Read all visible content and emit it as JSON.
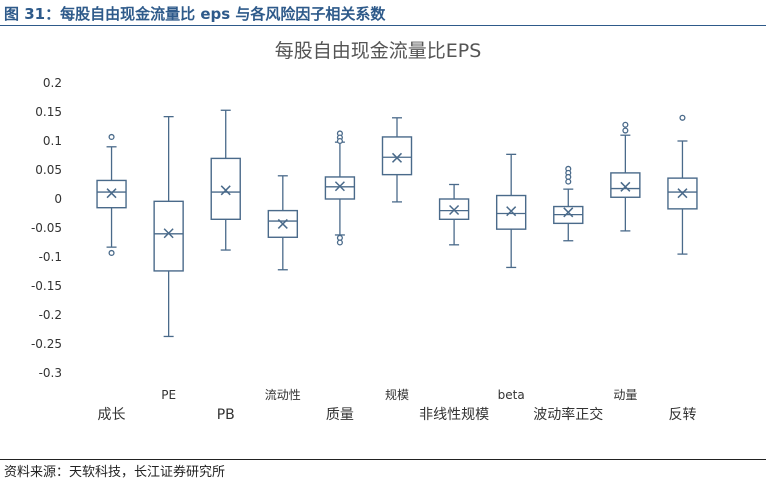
{
  "figure": {
    "title": "图 31：每股自由现金流量比 eps 与各风险因子相关系数",
    "source": "资料来源：天软科技，长江证券研究所"
  },
  "chart_data": {
    "type": "boxplot",
    "title": "每股自由现金流量比EPS",
    "xlabel": "",
    "ylabel": "",
    "ylim": [
      -0.3,
      0.2
    ],
    "ytick_step": 0.05,
    "yticks": [
      "0.2",
      "0.15",
      "0.1",
      "0.05",
      "0",
      "-0.05",
      "-0.1",
      "-0.15",
      "-0.2",
      "-0.25",
      "-0.3"
    ],
    "grid": false,
    "legend": "none",
    "colors": {
      "box": "#4a6a8a",
      "tick_text": "#333333",
      "title_text": "#555555"
    },
    "categories": [
      "成长",
      "PE",
      "PB",
      "流动性",
      "质量",
      "规模",
      "非线性规模",
      "beta",
      "波动率正交",
      "动量",
      "反转"
    ],
    "label_row": [
      "lower",
      "upper",
      "lower",
      "upper",
      "lower",
      "upper",
      "lower",
      "upper",
      "lower",
      "upper",
      "lower"
    ],
    "boxes": [
      {
        "category": "成长",
        "whisker_low": -0.083,
        "q1": -0.015,
        "median": 0.012,
        "q3": 0.032,
        "whisker_high": 0.09,
        "mean": 0.01,
        "outliers": [
          0.107,
          -0.093
        ]
      },
      {
        "category": "PE",
        "whisker_low": -0.237,
        "q1": -0.124,
        "median": -0.06,
        "q3": -0.004,
        "whisker_high": 0.142,
        "mean": -0.059,
        "outliers": []
      },
      {
        "category": "PB",
        "whisker_low": -0.088,
        "q1": -0.035,
        "median": 0.012,
        "q3": 0.07,
        "whisker_high": 0.153,
        "mean": 0.015,
        "outliers": []
      },
      {
        "category": "流动性",
        "whisker_low": -0.122,
        "q1": -0.066,
        "median": -0.038,
        "q3": -0.02,
        "whisker_high": 0.04,
        "mean": -0.043,
        "outliers": []
      },
      {
        "category": "质量",
        "whisker_low": -0.062,
        "q1": 0.0,
        "median": 0.021,
        "q3": 0.038,
        "whisker_high": 0.098,
        "mean": 0.022,
        "outliers": [
          0.113,
          0.106,
          0.1,
          -0.067,
          -0.075
        ]
      },
      {
        "category": "规模",
        "whisker_low": -0.005,
        "q1": 0.042,
        "median": 0.072,
        "q3": 0.107,
        "whisker_high": 0.14,
        "mean": 0.071,
        "outliers": []
      },
      {
        "category": "非线性规模",
        "whisker_low": -0.079,
        "q1": -0.035,
        "median": -0.02,
        "q3": 0.0,
        "whisker_high": 0.025,
        "mean": -0.019,
        "outliers": []
      },
      {
        "category": "beta",
        "whisker_low": -0.118,
        "q1": -0.052,
        "median": -0.025,
        "q3": 0.006,
        "whisker_high": 0.077,
        "mean": -0.021,
        "outliers": []
      },
      {
        "category": "波动率正交",
        "whisker_low": -0.072,
        "q1": -0.042,
        "median": -0.027,
        "q3": -0.013,
        "whisker_high": 0.017,
        "mean": -0.023,
        "outliers": [
          0.052,
          0.045,
          0.038,
          0.03
        ]
      },
      {
        "category": "动量",
        "whisker_low": -0.055,
        "q1": 0.003,
        "median": 0.018,
        "q3": 0.045,
        "whisker_high": 0.11,
        "mean": 0.021,
        "outliers": [
          0.128,
          0.118
        ]
      },
      {
        "category": "反转",
        "whisker_low": -0.095,
        "q1": -0.017,
        "median": 0.012,
        "q3": 0.036,
        "whisker_high": 0.1,
        "mean": 0.01,
        "outliers": [
          0.14
        ]
      }
    ]
  }
}
